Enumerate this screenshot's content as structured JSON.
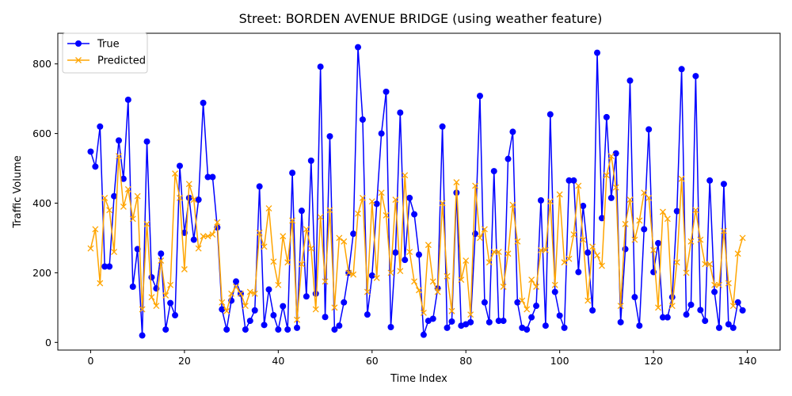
{
  "chart_data": {
    "type": "line",
    "title": "Street: BORDEN AVENUE BRIDGE (using weather feature)",
    "xlabel": "Time Index",
    "ylabel": "Traffic Volume",
    "xlim": [
      -7,
      147
    ],
    "ylim": [
      -22,
      888
    ],
    "xticks": [
      0,
      20,
      40,
      60,
      80,
      100,
      120,
      140
    ],
    "yticks": [
      0,
      200,
      400,
      600,
      800
    ],
    "legend": "upper-left",
    "series": [
      {
        "name": "True",
        "color": "#0000ff",
        "marker": "circle",
        "values": [
          548,
          505,
          620,
          218,
          218,
          420,
          580,
          470,
          697,
          160,
          268,
          20,
          577,
          187,
          155,
          255,
          37,
          113,
          78,
          507,
          315,
          415,
          295,
          410,
          688,
          475,
          475,
          330,
          95,
          37,
          120,
          175,
          140,
          37,
          62,
          92,
          448,
          50,
          152,
          78,
          37,
          104,
          37,
          487,
          42,
          378,
          132,
          522,
          140,
          792,
          73,
          592,
          37,
          48,
          115,
          200,
          312,
          848,
          640,
          80,
          192,
          398,
          600,
          720,
          44,
          258,
          660,
          237,
          415,
          368,
          252,
          22,
          62,
          68,
          155,
          620,
          42,
          60,
          430,
          48,
          52,
          58,
          312,
          708,
          115,
          58,
          492,
          62,
          62,
          527,
          605,
          115,
          42,
          37,
          72,
          105,
          408,
          48,
          655,
          145,
          77,
          42,
          465,
          465,
          202,
          392,
          258,
          92,
          832,
          357,
          647,
          415,
          543,
          58,
          268,
          752,
          130,
          48,
          325,
          612,
          202,
          285,
          72,
          72,
          130,
          377,
          785,
          80,
          108,
          765,
          93,
          62,
          465,
          145,
          42,
          455,
          52,
          42,
          115,
          92
        ]
      },
      {
        "name": "Predicted",
        "color": "#ffa500",
        "marker": "x",
        "values": [
          270,
          325,
          170,
          415,
          380,
          260,
          535,
          390,
          440,
          355,
          420,
          95,
          340,
          130,
          105,
          235,
          135,
          165,
          485,
          415,
          210,
          455,
          410,
          270,
          305,
          305,
          310,
          345,
          115,
          90,
          140,
          160,
          140,
          105,
          145,
          140,
          315,
          275,
          385,
          232,
          165,
          305,
          230,
          350,
          65,
          225,
          325,
          270,
          95,
          360,
          175,
          380,
          100,
          300,
          290,
          200,
          195,
          370,
          415,
          145,
          405,
          185,
          430,
          365,
          200,
          410,
          205,
          480,
          260,
          175,
          150,
          85,
          280,
          175,
          145,
          400,
          190,
          90,
          460,
          180,
          235,
          80,
          450,
          300,
          325,
          230,
          260,
          260,
          160,
          255,
          395,
          290,
          120,
          95,
          180,
          160,
          265,
          265,
          405,
          165,
          425,
          230,
          240,
          310,
          450,
          295,
          120,
          275,
          250,
          220,
          480,
          535,
          445,
          105,
          340,
          410,
          295,
          350,
          430,
          415,
          265,
          100,
          375,
          355,
          105,
          230,
          470,
          200,
          290,
          380,
          295,
          225,
          225,
          165,
          165,
          320,
          170,
          105,
          255,
          300
        ]
      }
    ]
  }
}
